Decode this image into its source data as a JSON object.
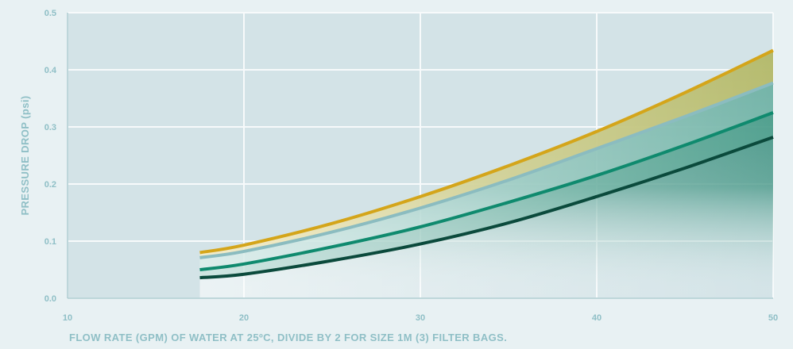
{
  "chart_data": {
    "type": "line",
    "title": "",
    "xlabel": "FLOW RATE (GPM) OF WATER AT 25ºC, DIVIDE BY 2 FOR SIZE 1M (3) FILTER BAGS.",
    "ylabel": "PRESSURE DROP (psi)",
    "xlim": [
      10,
      50
    ],
    "ylim": [
      0,
      0.5
    ],
    "x_ticks": [
      "10",
      "20",
      "30",
      "40",
      "50"
    ],
    "y_ticks": [
      "0.0",
      "0.1",
      "0.2",
      "0.3",
      "0.4",
      "0.5"
    ],
    "x_tick_values": [
      10,
      20,
      30,
      40,
      50
    ],
    "y_tick_values": [
      0,
      0.1,
      0.2,
      0.3,
      0.4,
      0.5
    ],
    "grid": true,
    "legend": "none",
    "x": [
      17.5,
      20,
      25,
      30,
      35,
      40,
      45,
      50
    ],
    "series": [
      {
        "color": "#d4a51a",
        "values": [
          0.08,
          0.093,
          0.131,
          0.178,
          0.232,
          0.292,
          0.36,
          0.434
        ]
      },
      {
        "color": "#8bbcc0",
        "values": [
          0.071,
          0.082,
          0.116,
          0.158,
          0.207,
          0.262,
          0.318,
          0.377
        ]
      },
      {
        "color": "#0f8a6e",
        "values": [
          0.05,
          0.06,
          0.09,
          0.125,
          0.168,
          0.215,
          0.268,
          0.325
        ]
      },
      {
        "color": "#0b4a3c",
        "values": [
          0.036,
          0.042,
          0.066,
          0.095,
          0.132,
          0.178,
          0.228,
          0.282
        ]
      }
    ]
  },
  "colors": {
    "background": "#e8f1f3",
    "band_dark": "#d3e3e7",
    "band_light": "#eaf2f4",
    "grid": "#f7fafb",
    "axis": "#aac9cf",
    "label": "#8fbfc6",
    "fill_teal": "#27806c"
  }
}
